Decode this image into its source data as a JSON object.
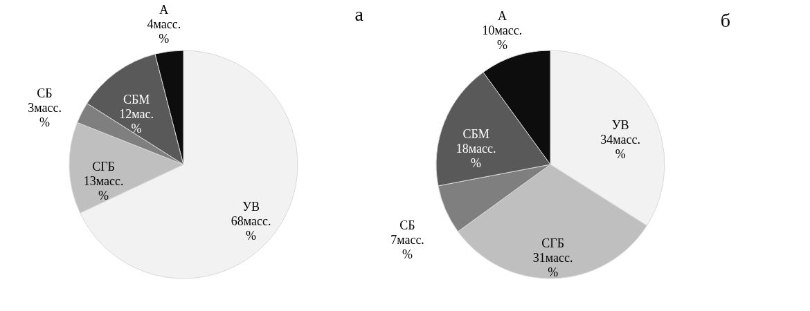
{
  "chart_data": [
    {
      "type": "pie",
      "title": "а",
      "categories": [
        "УВ",
        "СГБ",
        "СБ",
        "СБМ",
        "А"
      ],
      "values": [
        68,
        13,
        3,
        12,
        4
      ],
      "value_labels": [
        "68масс. %",
        "13масс. %",
        "3масс. %",
        "12мас. %",
        "4масс. %"
      ],
      "colors": [
        "#f2f2f2",
        "#bfbfbf",
        "#7f7f7f",
        "#595959",
        "#0d0d0d"
      ],
      "legend": false
    },
    {
      "type": "pie",
      "title": "б",
      "categories": [
        "УВ",
        "СГБ",
        "СБ",
        "СБМ",
        "А"
      ],
      "values": [
        34,
        31,
        7,
        18,
        10
      ],
      "value_labels": [
        "34масс. %",
        "31масс. %",
        "7масс. %",
        "18масс. %",
        "10масс. %"
      ],
      "colors": [
        "#f2f2f2",
        "#bfbfbf",
        "#7f7f7f",
        "#595959",
        "#0d0d0d"
      ],
      "legend": false
    }
  ]
}
